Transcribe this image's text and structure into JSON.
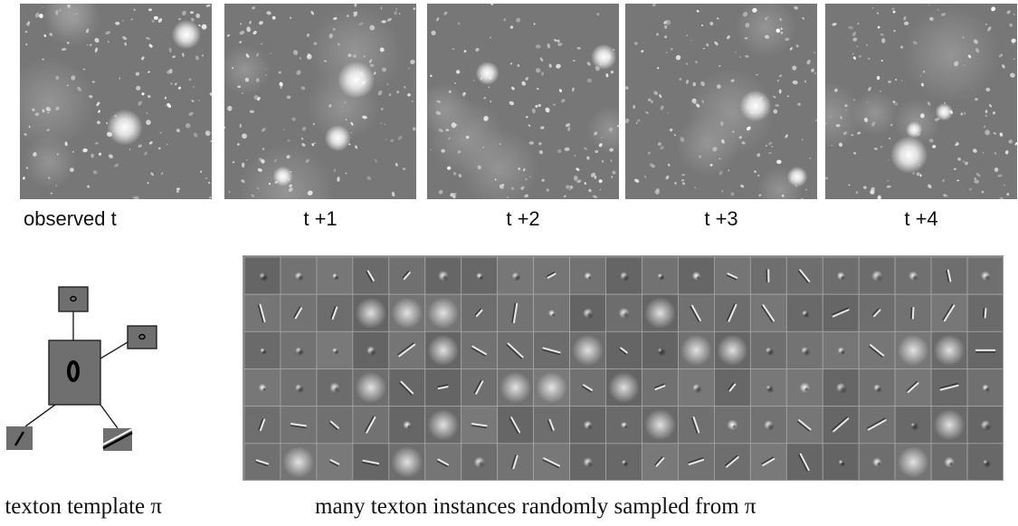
{
  "frames": [
    {
      "label": "observed  t"
    },
    {
      "label": "t +1"
    },
    {
      "label": "t +2"
    },
    {
      "label": "t +3"
    },
    {
      "label": "t +4"
    }
  ],
  "template": {
    "caption": "a texton template π"
  },
  "instances": {
    "caption": "many texton instances randomly sampled from π",
    "rows": 6,
    "columns": 21
  }
}
